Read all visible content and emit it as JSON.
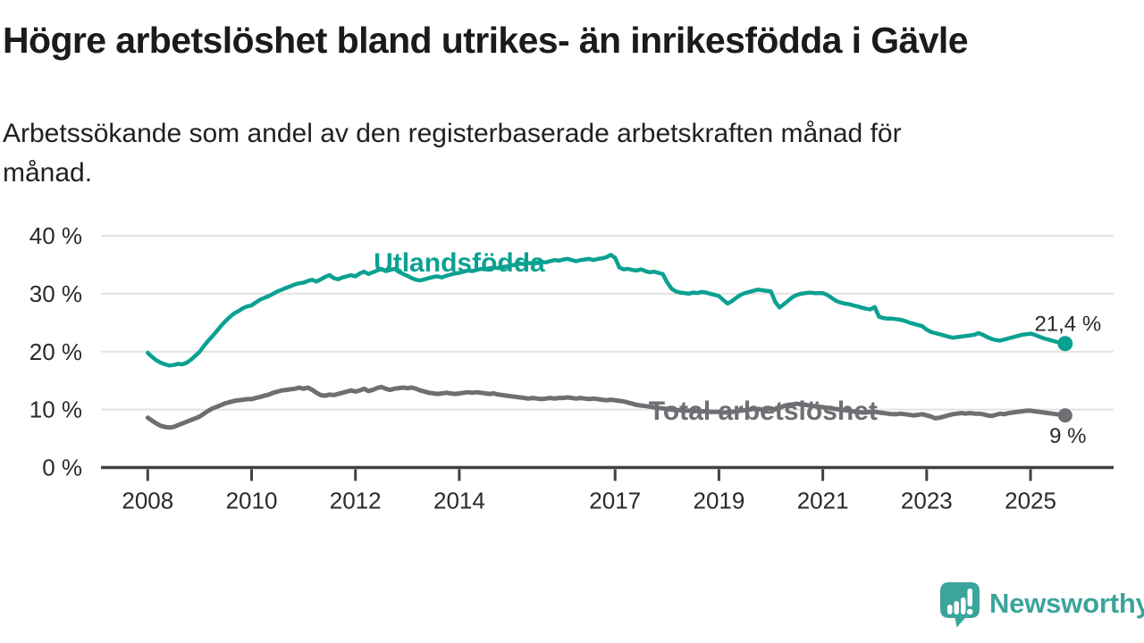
{
  "title": "Högre arbetslöshet bland utrikes- än inrikesfödda i Gävle",
  "subtitle_lines": [
    "Arbetssökande som andel av den registerbaserade arbetskraften månad för",
    "månad."
  ],
  "logo": {
    "text": "Newsworthy",
    "color": "#3ba49c"
  },
  "chart_data": {
    "type": "line",
    "title": "Högre arbetslöshet bland utrikes- än inrikesfödda i Gävle",
    "subtitle": "Arbetssökande som andel av den registerbaserade arbetskraften månad för månad.",
    "x_unit": "decimal_year_monthly",
    "x_start": 2008.0,
    "x_step": 0.0833333,
    "xlim": [
      2007.1,
      2026.6
    ],
    "ylim": [
      0,
      40
    ],
    "grid": "horizontal",
    "x_ticks": [
      2008,
      2010,
      2012,
      2014,
      2017,
      2019,
      2021,
      2023,
      2025
    ],
    "y_ticks": [
      0,
      10,
      20,
      30,
      40
    ],
    "y_tick_suffix": " %",
    "colors": {
      "grid": "#e4e2e0",
      "axis": "#414145",
      "tick_text": "#2a2a2a",
      "value_text": "#2b2b2b"
    },
    "series": [
      {
        "id": "utlandsfodda",
        "name": "Utlandsfödda",
        "color": "#0ba192",
        "width": 4.5,
        "dot_r": 8.5,
        "end_label": "21,4 %",
        "end_label_below": false,
        "label_at": [
          2014.0,
          35.5
        ],
        "values": [
          19.8,
          19.1,
          18.5,
          18.1,
          17.8,
          17.6,
          17.7,
          17.9,
          17.8,
          18.1,
          18.6,
          19.3,
          20.0,
          21.0,
          21.9,
          22.7,
          23.6,
          24.5,
          25.3,
          26.0,
          26.6,
          27.0,
          27.5,
          27.8,
          28.0,
          28.5,
          29.0,
          29.3,
          29.6,
          30.0,
          30.4,
          30.7,
          31.0,
          31.3,
          31.6,
          31.8,
          31.9,
          32.2,
          32.4,
          32.1,
          32.5,
          32.9,
          33.2,
          32.7,
          32.5,
          32.8,
          33.0,
          33.2,
          33.0,
          33.5,
          33.8,
          33.4,
          33.7,
          34.0,
          34.3,
          33.9,
          34.1,
          34.3,
          33.8,
          33.4,
          33.1,
          32.7,
          32.4,
          32.3,
          32.5,
          32.7,
          32.9,
          33.0,
          32.8,
          33.1,
          33.3,
          33.5,
          33.6,
          33.8,
          34.0,
          33.9,
          34.1,
          34.3,
          34.2,
          34.4,
          34.5,
          34.4,
          34.6,
          34.7,
          34.9,
          35.0,
          35.2,
          35.1,
          35.3,
          35.2,
          35.4,
          35.5,
          35.4,
          35.6,
          35.8,
          35.7,
          35.9,
          36.0,
          35.8,
          35.6,
          35.8,
          35.9,
          36.0,
          35.8,
          36.0,
          36.1,
          36.3,
          36.7,
          36.2,
          34.5,
          34.2,
          34.3,
          34.1,
          34.0,
          34.2,
          33.9,
          33.7,
          33.8,
          33.6,
          33.4,
          32.0,
          30.9,
          30.4,
          30.2,
          30.1,
          30.0,
          30.2,
          30.1,
          30.3,
          30.2,
          30.0,
          29.8,
          29.6,
          28.9,
          28.3,
          28.7,
          29.3,
          29.8,
          30.1,
          30.3,
          30.5,
          30.7,
          30.6,
          30.5,
          30.4,
          28.6,
          27.6,
          28.2,
          28.8,
          29.4,
          29.8,
          30.0,
          30.1,
          30.2,
          30.1,
          30.1,
          30.1,
          29.8,
          29.3,
          28.8,
          28.5,
          28.3,
          28.2,
          28.0,
          27.8,
          27.6,
          27.4,
          27.3,
          27.7,
          26.0,
          25.8,
          25.7,
          25.7,
          25.6,
          25.5,
          25.3,
          25.0,
          24.8,
          24.6,
          24.4,
          23.8,
          23.4,
          23.2,
          23.0,
          22.8,
          22.6,
          22.4,
          22.5,
          22.6,
          22.7,
          22.8,
          22.9,
          23.2,
          22.9,
          22.5,
          22.2,
          22.0,
          21.9,
          22.1,
          22.3,
          22.5,
          22.7,
          22.9,
          23.0,
          23.1,
          22.9,
          22.6,
          22.3,
          22.1,
          21.9,
          21.7,
          21.5,
          21.4
        ]
      },
      {
        "id": "total",
        "name": "Total arbetslöshet",
        "color": "#6e6e73",
        "width": 5,
        "dot_r": 8,
        "end_label": "9 %",
        "end_label_below": true,
        "label_at": [
          2019.85,
          9.95
        ],
        "values": [
          8.6,
          8.1,
          7.6,
          7.2,
          7.0,
          6.9,
          7.0,
          7.3,
          7.6,
          7.9,
          8.2,
          8.5,
          8.8,
          9.3,
          9.8,
          10.2,
          10.5,
          10.8,
          11.1,
          11.3,
          11.5,
          11.6,
          11.7,
          11.8,
          11.8,
          12.0,
          12.2,
          12.4,
          12.6,
          12.9,
          13.1,
          13.3,
          13.4,
          13.5,
          13.6,
          13.8,
          13.6,
          13.8,
          13.4,
          12.9,
          12.5,
          12.4,
          12.6,
          12.5,
          12.7,
          12.9,
          13.1,
          13.3,
          13.1,
          13.3,
          13.6,
          13.2,
          13.4,
          13.7,
          13.9,
          13.6,
          13.4,
          13.6,
          13.7,
          13.8,
          13.7,
          13.8,
          13.6,
          13.3,
          13.1,
          12.9,
          12.8,
          12.7,
          12.8,
          12.9,
          12.8,
          12.7,
          12.8,
          12.9,
          13.0,
          12.9,
          13.0,
          12.9,
          12.8,
          12.7,
          12.8,
          12.6,
          12.5,
          12.4,
          12.3,
          12.2,
          12.1,
          12.0,
          11.9,
          12.0,
          11.9,
          11.8,
          11.9,
          12.0,
          11.9,
          12.0,
          12.0,
          12.1,
          12.0,
          11.9,
          12.0,
          11.9,
          11.8,
          11.9,
          11.8,
          11.7,
          11.6,
          11.7,
          11.6,
          11.5,
          11.4,
          11.2,
          11.0,
          10.8,
          10.7,
          10.6,
          10.5,
          10.4,
          10.3,
          10.2,
          10.1,
          10.0,
          9.9,
          9.9,
          9.8,
          9.8,
          9.9,
          9.8,
          9.7,
          9.7,
          9.6,
          9.6,
          9.6,
          9.5,
          9.5,
          9.6,
          9.7,
          9.8,
          9.9,
          10.0,
          10.1,
          10.1,
          10.0,
          10.1,
          10.2,
          10.0,
          10.3,
          10.6,
          10.8,
          10.9,
          11.0,
          10.9,
          10.8,
          10.7,
          10.6,
          10.5,
          10.4,
          10.3,
          10.2,
          10.1,
          10.0,
          9.9,
          9.8,
          9.7,
          9.6,
          9.5,
          9.5,
          9.6,
          9.6,
          9.5,
          9.4,
          9.3,
          9.2,
          9.2,
          9.3,
          9.2,
          9.1,
          9.0,
          9.1,
          9.2,
          9.0,
          8.8,
          8.5,
          8.6,
          8.8,
          9.0,
          9.2,
          9.3,
          9.4,
          9.3,
          9.4,
          9.3,
          9.3,
          9.2,
          9.0,
          8.9,
          9.1,
          9.3,
          9.2,
          9.4,
          9.5,
          9.6,
          9.7,
          9.8,
          9.8,
          9.7,
          9.6,
          9.5,
          9.4,
          9.3,
          9.2,
          9.1,
          9.0
        ]
      }
    ]
  }
}
